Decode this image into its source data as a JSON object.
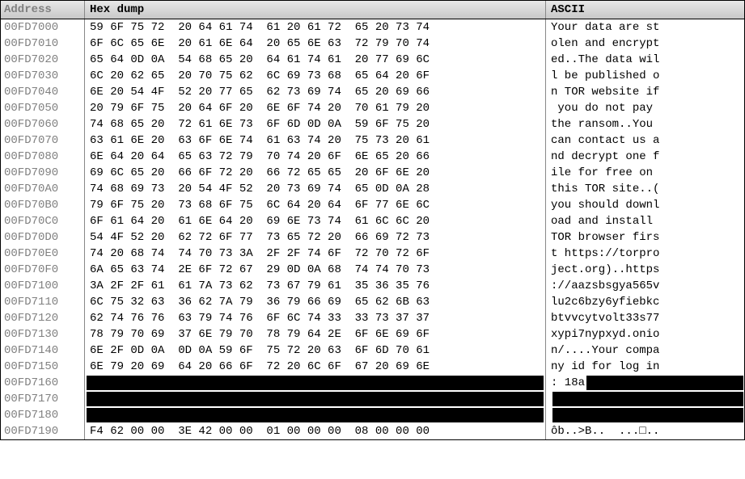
{
  "headers": {
    "address": "Address",
    "hexdump": "Hex dump",
    "ascii": "ASCII"
  },
  "rows": [
    {
      "addr": "00FD7000",
      "hex": [
        "59",
        "6F",
        "75",
        "72",
        "20",
        "64",
        "61",
        "74",
        "61",
        "20",
        "61",
        "72",
        "65",
        "20",
        "73",
        "74"
      ],
      "ascii": "Your data are st"
    },
    {
      "addr": "00FD7010",
      "hex": [
        "6F",
        "6C",
        "65",
        "6E",
        "20",
        "61",
        "6E",
        "64",
        "20",
        "65",
        "6E",
        "63",
        "72",
        "79",
        "70",
        "74"
      ],
      "ascii": "olen and encrypt"
    },
    {
      "addr": "00FD7020",
      "hex": [
        "65",
        "64",
        "0D",
        "0A",
        "54",
        "68",
        "65",
        "20",
        "64",
        "61",
        "74",
        "61",
        "20",
        "77",
        "69",
        "6C"
      ],
      "ascii": "ed..The data wil"
    },
    {
      "addr": "00FD7030",
      "hex": [
        "6C",
        "20",
        "62",
        "65",
        "20",
        "70",
        "75",
        "62",
        "6C",
        "69",
        "73",
        "68",
        "65",
        "64",
        "20",
        "6F"
      ],
      "ascii": "l be published o"
    },
    {
      "addr": "00FD7040",
      "hex": [
        "6E",
        "20",
        "54",
        "4F",
        "52",
        "20",
        "77",
        "65",
        "62",
        "73",
        "69",
        "74",
        "65",
        "20",
        "69",
        "66"
      ],
      "ascii": "n TOR website if"
    },
    {
      "addr": "00FD7050",
      "hex": [
        "20",
        "79",
        "6F",
        "75",
        "20",
        "64",
        "6F",
        "20",
        "6E",
        "6F",
        "74",
        "20",
        "70",
        "61",
        "79",
        "20"
      ],
      "ascii": " you do not pay "
    },
    {
      "addr": "00FD7060",
      "hex": [
        "74",
        "68",
        "65",
        "20",
        "72",
        "61",
        "6E",
        "73",
        "6F",
        "6D",
        "0D",
        "0A",
        "59",
        "6F",
        "75",
        "20"
      ],
      "ascii": "the ransom..You "
    },
    {
      "addr": "00FD7070",
      "hex": [
        "63",
        "61",
        "6E",
        "20",
        "63",
        "6F",
        "6E",
        "74",
        "61",
        "63",
        "74",
        "20",
        "75",
        "73",
        "20",
        "61"
      ],
      "ascii": "can contact us a"
    },
    {
      "addr": "00FD7080",
      "hex": [
        "6E",
        "64",
        "20",
        "64",
        "65",
        "63",
        "72",
        "79",
        "70",
        "74",
        "20",
        "6F",
        "6E",
        "65",
        "20",
        "66"
      ],
      "ascii": "nd decrypt one f"
    },
    {
      "addr": "00FD7090",
      "hex": [
        "69",
        "6C",
        "65",
        "20",
        "66",
        "6F",
        "72",
        "20",
        "66",
        "72",
        "65",
        "65",
        "20",
        "6F",
        "6E",
        "20"
      ],
      "ascii": "ile for free on "
    },
    {
      "addr": "00FD70A0",
      "hex": [
        "74",
        "68",
        "69",
        "73",
        "20",
        "54",
        "4F",
        "52",
        "20",
        "73",
        "69",
        "74",
        "65",
        "0D",
        "0A",
        "28"
      ],
      "ascii": "this TOR site..("
    },
    {
      "addr": "00FD70B0",
      "hex": [
        "79",
        "6F",
        "75",
        "20",
        "73",
        "68",
        "6F",
        "75",
        "6C",
        "64",
        "20",
        "64",
        "6F",
        "77",
        "6E",
        "6C"
      ],
      "ascii": "you should downl"
    },
    {
      "addr": "00FD70C0",
      "hex": [
        "6F",
        "61",
        "64",
        "20",
        "61",
        "6E",
        "64",
        "20",
        "69",
        "6E",
        "73",
        "74",
        "61",
        "6C",
        "6C",
        "20"
      ],
      "ascii": "oad and install "
    },
    {
      "addr": "00FD70D0",
      "hex": [
        "54",
        "4F",
        "52",
        "20",
        "62",
        "72",
        "6F",
        "77",
        "73",
        "65",
        "72",
        "20",
        "66",
        "69",
        "72",
        "73"
      ],
      "ascii": "TOR browser firs"
    },
    {
      "addr": "00FD70E0",
      "hex": [
        "74",
        "20",
        "68",
        "74",
        "74",
        "70",
        "73",
        "3A",
        "2F",
        "2F",
        "74",
        "6F",
        "72",
        "70",
        "72",
        "6F"
      ],
      "ascii": "t https://torpro"
    },
    {
      "addr": "00FD70F0",
      "hex": [
        "6A",
        "65",
        "63",
        "74",
        "2E",
        "6F",
        "72",
        "67",
        "29",
        "0D",
        "0A",
        "68",
        "74",
        "74",
        "70",
        "73"
      ],
      "ascii": "ject.org)..https"
    },
    {
      "addr": "00FD7100",
      "hex": [
        "3A",
        "2F",
        "2F",
        "61",
        "61",
        "7A",
        "73",
        "62",
        "73",
        "67",
        "79",
        "61",
        "35",
        "36",
        "35",
        "76"
      ],
      "ascii": "://aazsbsgya565v"
    },
    {
      "addr": "00FD7110",
      "hex": [
        "6C",
        "75",
        "32",
        "63",
        "36",
        "62",
        "7A",
        "79",
        "36",
        "79",
        "66",
        "69",
        "65",
        "62",
        "6B",
        "63"
      ],
      "ascii": "lu2c6bzy6yfiebkc"
    },
    {
      "addr": "00FD7120",
      "hex": [
        "62",
        "74",
        "76",
        "76",
        "63",
        "79",
        "74",
        "76",
        "6F",
        "6C",
        "74",
        "33",
        "33",
        "73",
        "37",
        "37"
      ],
      "ascii": "btvvcytvolt33s77"
    },
    {
      "addr": "00FD7130",
      "hex": [
        "78",
        "79",
        "70",
        "69",
        "37",
        "6E",
        "79",
        "70",
        "78",
        "79",
        "64",
        "2E",
        "6F",
        "6E",
        "69",
        "6F"
      ],
      "ascii": "xypi7nypxyd.onio"
    },
    {
      "addr": "00FD7140",
      "hex": [
        "6E",
        "2F",
        "0D",
        "0A",
        "0D",
        "0A",
        "59",
        "6F",
        "75",
        "72",
        "20",
        "63",
        "6F",
        "6D",
        "70",
        "61"
      ],
      "ascii": "n/....Your compa"
    },
    {
      "addr": "00FD7150",
      "hex": [
        "6E",
        "79",
        "20",
        "69",
        "64",
        "20",
        "66",
        "6F",
        "72",
        "20",
        "6C",
        "6F",
        "67",
        "20",
        "69",
        "6E"
      ],
      "ascii": "ny id for log in"
    }
  ],
  "redacted_rows": [
    {
      "addr": "00FD7160",
      "ascii_prefix": ": 18a"
    },
    {
      "addr": "00FD7170",
      "ascii_prefix": ""
    },
    {
      "addr": "00FD7180",
      "ascii_prefix": ""
    }
  ],
  "final_row": {
    "addr": "00FD7190",
    "hex": [
      "F4",
      "62",
      "00",
      "00",
      "3E",
      "42",
      "00",
      "00",
      "01",
      "00",
      "00",
      "00",
      "08",
      "00",
      "00",
      "00"
    ],
    "ascii": "ôb..>B..  ...□.."
  },
  "colors": {
    "header_bg_top": "#e8e8e8",
    "header_bg_bottom": "#c8c8c8",
    "addr_color": "#808080",
    "text_color": "#000000",
    "redacted": "#000000"
  }
}
